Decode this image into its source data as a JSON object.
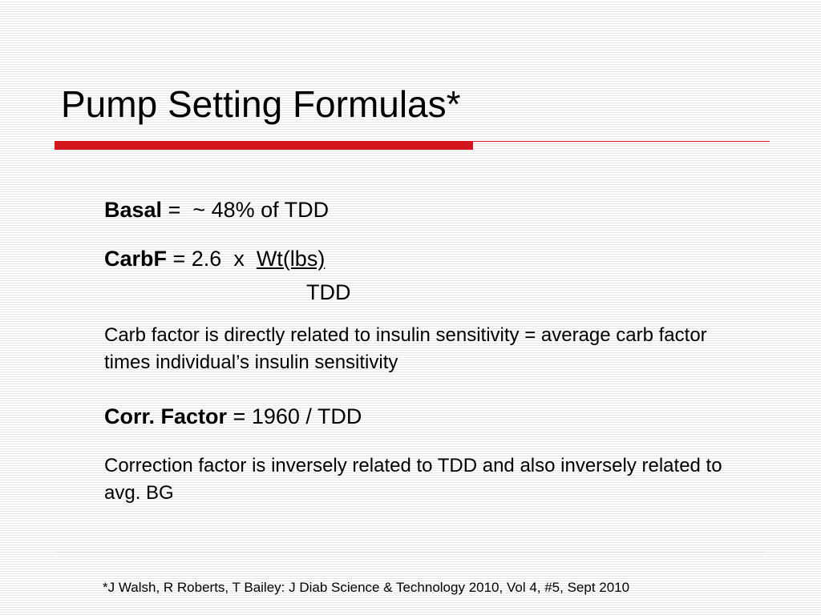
{
  "title": "Pump Setting Formulas*",
  "colors": {
    "accent": "#d3171d",
    "background_stripe": "#e6e6e6"
  },
  "basal": {
    "label": "Basal",
    "rest": " =  ~ 48% of TDD"
  },
  "carbf": {
    "label": "CarbF",
    "rest": " = 2.6  x  ",
    "numerator": "Wt(lbs)",
    "denominator": "TDD"
  },
  "carb_note": "Carb factor is directly related to insulin sensitivity = average carb factor times individual’s insulin sensitivity",
  "corr": {
    "label": "Corr. Factor",
    "rest": " = 1960 / TDD"
  },
  "corr_note": "Correction factor is inversely related to TDD and also inversely related to avg. BG",
  "footnote": "*J Walsh, R Roberts, T Bailey: J Diab Science & Technology 2010, Vol 4, #5, Sept 2010"
}
